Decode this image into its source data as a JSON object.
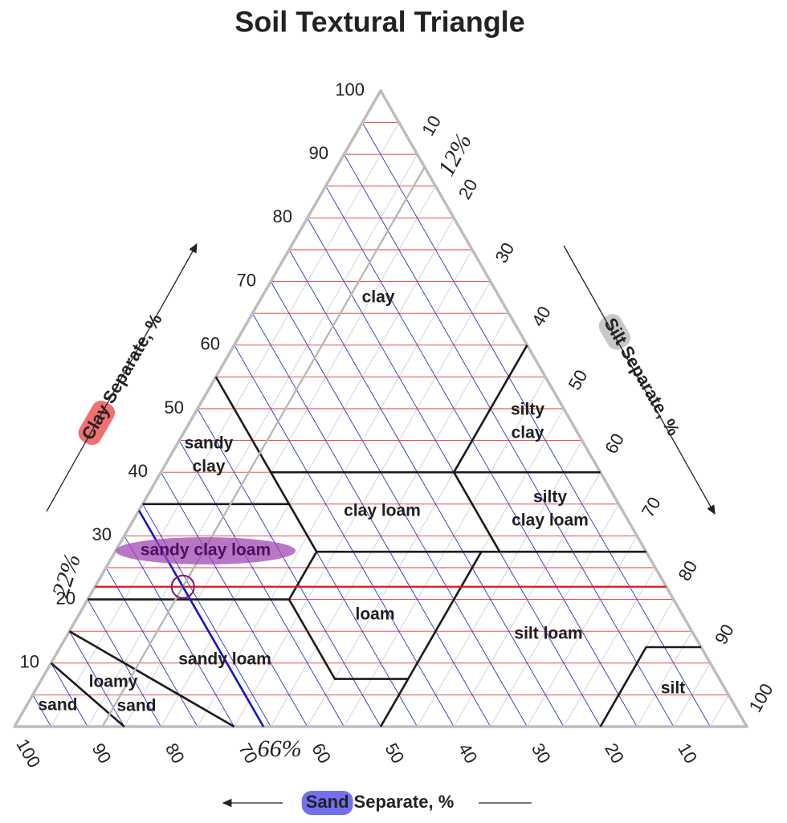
{
  "title": "Soil Textural Triangle",
  "axes": {
    "clay": {
      "word": "Clay",
      "rest": "Separate, %",
      "ticks": [
        10,
        20,
        30,
        40,
        50,
        60,
        70,
        80,
        90,
        100
      ]
    },
    "silt": {
      "word": "Silt",
      "rest": "Separate, %",
      "ticks": [
        10,
        20,
        30,
        40,
        50,
        60,
        70,
        80,
        90,
        100
      ]
    },
    "sand": {
      "word": "Sand",
      "rest": "Separate, %",
      "ticks": [
        100,
        90,
        80,
        70,
        60,
        50,
        40,
        30,
        20,
        10
      ]
    }
  },
  "regions": [
    {
      "lines": [
        "clay"
      ]
    },
    {
      "lines": [
        "sandy",
        "clay"
      ]
    },
    {
      "lines": [
        "silty",
        "clay"
      ]
    },
    {
      "lines": [
        "clay loam"
      ]
    },
    {
      "lines": [
        "silty",
        "clay loam"
      ]
    },
    {
      "lines": [
        "sandy clay loam"
      ]
    },
    {
      "lines": [
        "loam"
      ]
    },
    {
      "lines": [
        "silt loam"
      ]
    },
    {
      "lines": [
        "sandy loam"
      ]
    },
    {
      "lines": [
        "loamy"
      ]
    },
    {
      "lines": [
        "sand"
      ]
    },
    {
      "lines": [
        "sand"
      ]
    },
    {
      "lines": [
        "silt"
      ]
    }
  ],
  "annotations": {
    "clay": {
      "value": 22,
      "label": "22%"
    },
    "silt": {
      "value": 12,
      "label": "12%"
    },
    "sand": {
      "value": 66,
      "label": "66%"
    }
  }
}
